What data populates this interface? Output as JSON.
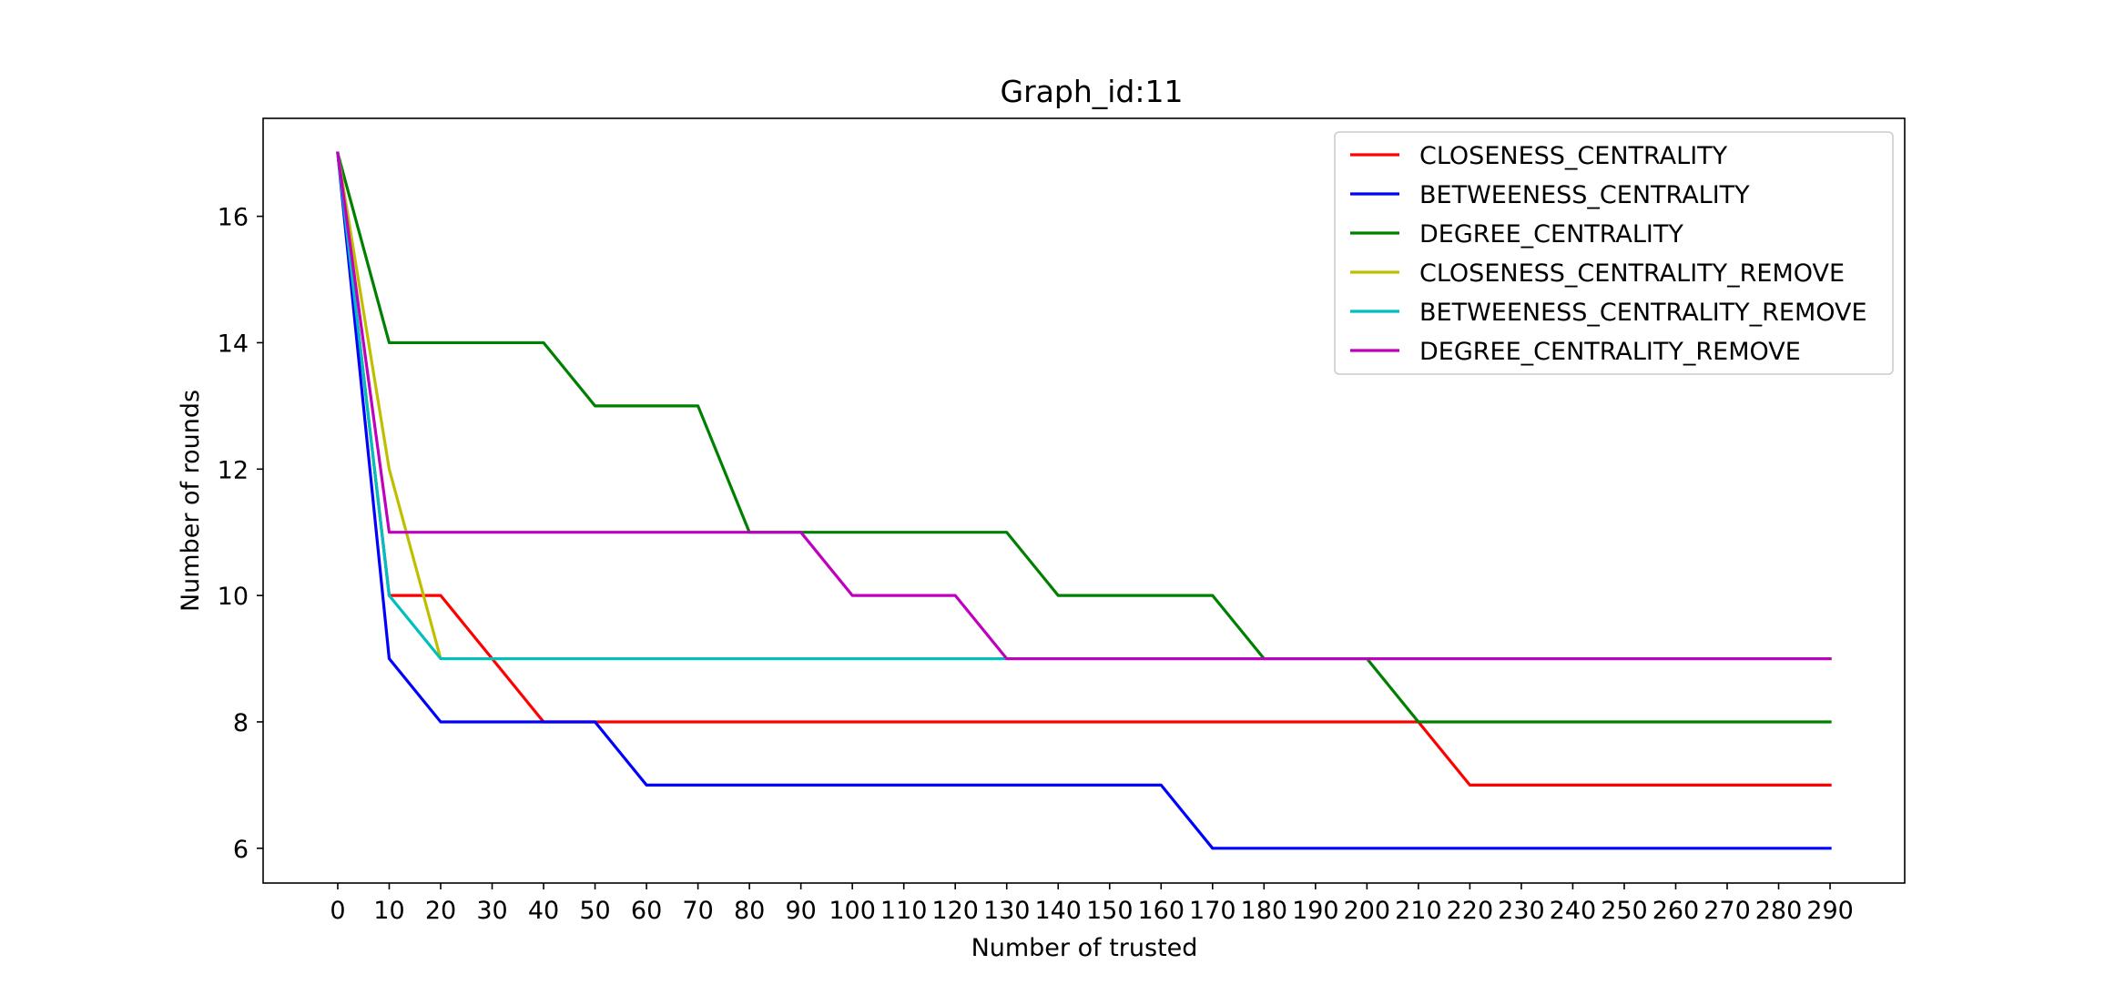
{
  "chart_data": {
    "type": "line",
    "title": "Graph_id:11",
    "xlabel": "Number of trusted",
    "ylabel": "Number of rounds",
    "xlim": [
      -14.5,
      304.5
    ],
    "ylim": [
      5.45,
      17.55
    ],
    "x_ticks": [
      0,
      10,
      20,
      30,
      40,
      50,
      60,
      70,
      80,
      90,
      100,
      110,
      120,
      130,
      140,
      150,
      160,
      170,
      180,
      190,
      200,
      210,
      220,
      230,
      240,
      250,
      260,
      270,
      280,
      290
    ],
    "y_ticks": [
      6,
      8,
      10,
      12,
      14,
      16
    ],
    "grid": false,
    "legend_position": "top-right",
    "x": [
      0,
      10,
      20,
      30,
      40,
      50,
      60,
      70,
      80,
      90,
      100,
      110,
      120,
      130,
      140,
      150,
      160,
      170,
      180,
      190,
      200,
      210,
      220,
      230,
      240,
      250,
      260,
      270,
      280,
      290
    ],
    "series": [
      {
        "name": "CLOSENESS_CENTRALITY",
        "color": "#ff0000",
        "values": [
          17,
          10,
          10,
          9,
          8,
          8,
          8,
          8,
          8,
          8,
          8,
          8,
          8,
          8,
          8,
          8,
          8,
          8,
          8,
          8,
          8,
          8,
          7,
          7,
          7,
          7,
          7,
          7,
          7,
          7
        ]
      },
      {
        "name": "BETWEENESS_CENTRALITY",
        "color": "#0000ff",
        "values": [
          17,
          9,
          8,
          8,
          8,
          8,
          7,
          7,
          7,
          7,
          7,
          7,
          7,
          7,
          7,
          7,
          7,
          6,
          6,
          6,
          6,
          6,
          6,
          6,
          6,
          6,
          6,
          6,
          6,
          6
        ]
      },
      {
        "name": "DEGREE_CENTRALITY",
        "color": "#008000",
        "values": [
          17,
          14,
          14,
          14,
          14,
          13,
          13,
          13,
          11,
          11,
          11,
          11,
          11,
          11,
          10,
          10,
          10,
          10,
          9,
          9,
          9,
          8,
          8,
          8,
          8,
          8,
          8,
          8,
          8,
          8
        ]
      },
      {
        "name": "CLOSENESS_CENTRALITY_REMOVE",
        "color": "#bfbf00",
        "values": [
          17,
          12,
          9,
          9,
          9,
          9,
          9,
          9,
          9,
          9,
          9,
          9,
          9,
          9,
          9,
          9,
          9,
          9,
          9,
          9,
          9,
          9,
          9,
          9,
          9,
          9,
          9,
          9,
          9,
          9
        ]
      },
      {
        "name": "BETWEENESS_CENTRALITY_REMOVE",
        "color": "#00bfbf",
        "values": [
          17,
          10,
          9,
          9,
          9,
          9,
          9,
          9,
          9,
          9,
          9,
          9,
          9,
          9,
          9,
          9,
          9,
          9,
          9,
          9,
          9,
          9,
          9,
          9,
          9,
          9,
          9,
          9,
          9,
          9
        ]
      },
      {
        "name": "DEGREE_CENTRALITY_REMOVE",
        "color": "#bf00bf",
        "values": [
          17,
          11,
          11,
          11,
          11,
          11,
          11,
          11,
          11,
          11,
          10,
          10,
          10,
          9,
          9,
          9,
          9,
          9,
          9,
          9,
          9,
          9,
          9,
          9,
          9,
          9,
          9,
          9,
          9,
          9
        ]
      }
    ]
  }
}
